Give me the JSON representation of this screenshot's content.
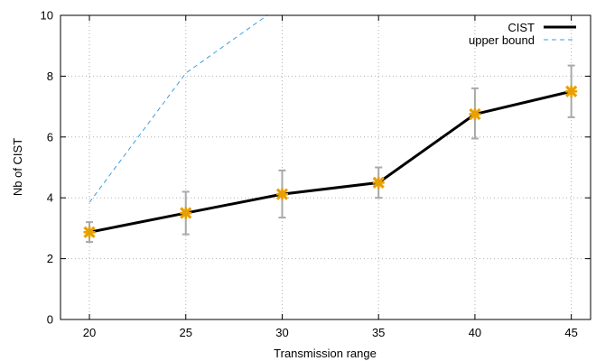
{
  "chart_data": {
    "type": "line",
    "xlabel": "Transmission range",
    "ylabel": "Nb of CIST",
    "x": [
      20,
      25,
      30,
      35,
      40,
      45
    ],
    "xlim": [
      18.5,
      46
    ],
    "ylim": [
      0,
      10
    ],
    "xticks": [
      "20",
      "25",
      "30",
      "35",
      "40",
      "45"
    ],
    "yticks": [
      "0",
      "2",
      "4",
      "6",
      "8",
      "10"
    ],
    "grid": true,
    "legend_position": "top-right",
    "series": [
      {
        "name": "CIST",
        "style": "solid",
        "color": "#000000",
        "marker_color": "#e8a000",
        "x": [
          20,
          25,
          30,
          35,
          40,
          45
        ],
        "values": [
          2.87,
          3.5,
          4.12,
          4.5,
          6.75,
          7.5
        ],
        "error_low": [
          2.55,
          2.8,
          3.35,
          4.0,
          5.95,
          6.65
        ],
        "error_high": [
          3.2,
          4.2,
          4.9,
          5.0,
          7.6,
          8.35
        ]
      },
      {
        "name": "upper bound",
        "style": "dashed",
        "color": "#3a9ee0",
        "x": [
          20,
          25,
          30
        ],
        "values": [
          3.85,
          8.1,
          10.35
        ]
      }
    ]
  }
}
